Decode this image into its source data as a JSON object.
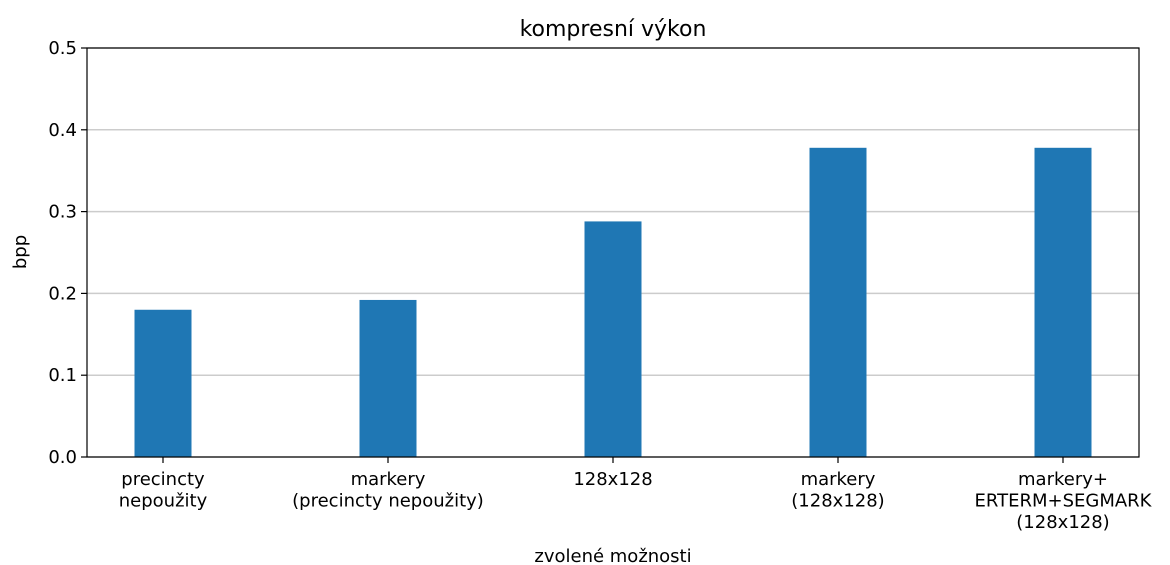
{
  "chart_data": {
    "type": "bar",
    "title": "kompresní výkon",
    "x_label": "zvolené možnosti",
    "y_label": "bpp",
    "categories": [
      "precincty\nnepoužity",
      "markery\n(precincty nepoužity)",
      "128x128",
      "markery\n(128x128)",
      "markery+\nERTERM+SEGMARK\n(128x128)"
    ],
    "values": [
      0.18,
      0.192,
      0.288,
      0.378,
      0.378
    ],
    "color": "#1f77b4",
    "ylim": [
      0,
      0.5
    ],
    "yticks": [
      {
        "value": 0,
        "label": "0.0"
      },
      0.1,
      0.2,
      0.3,
      0.4,
      0.5
    ],
    "grid": true
  }
}
